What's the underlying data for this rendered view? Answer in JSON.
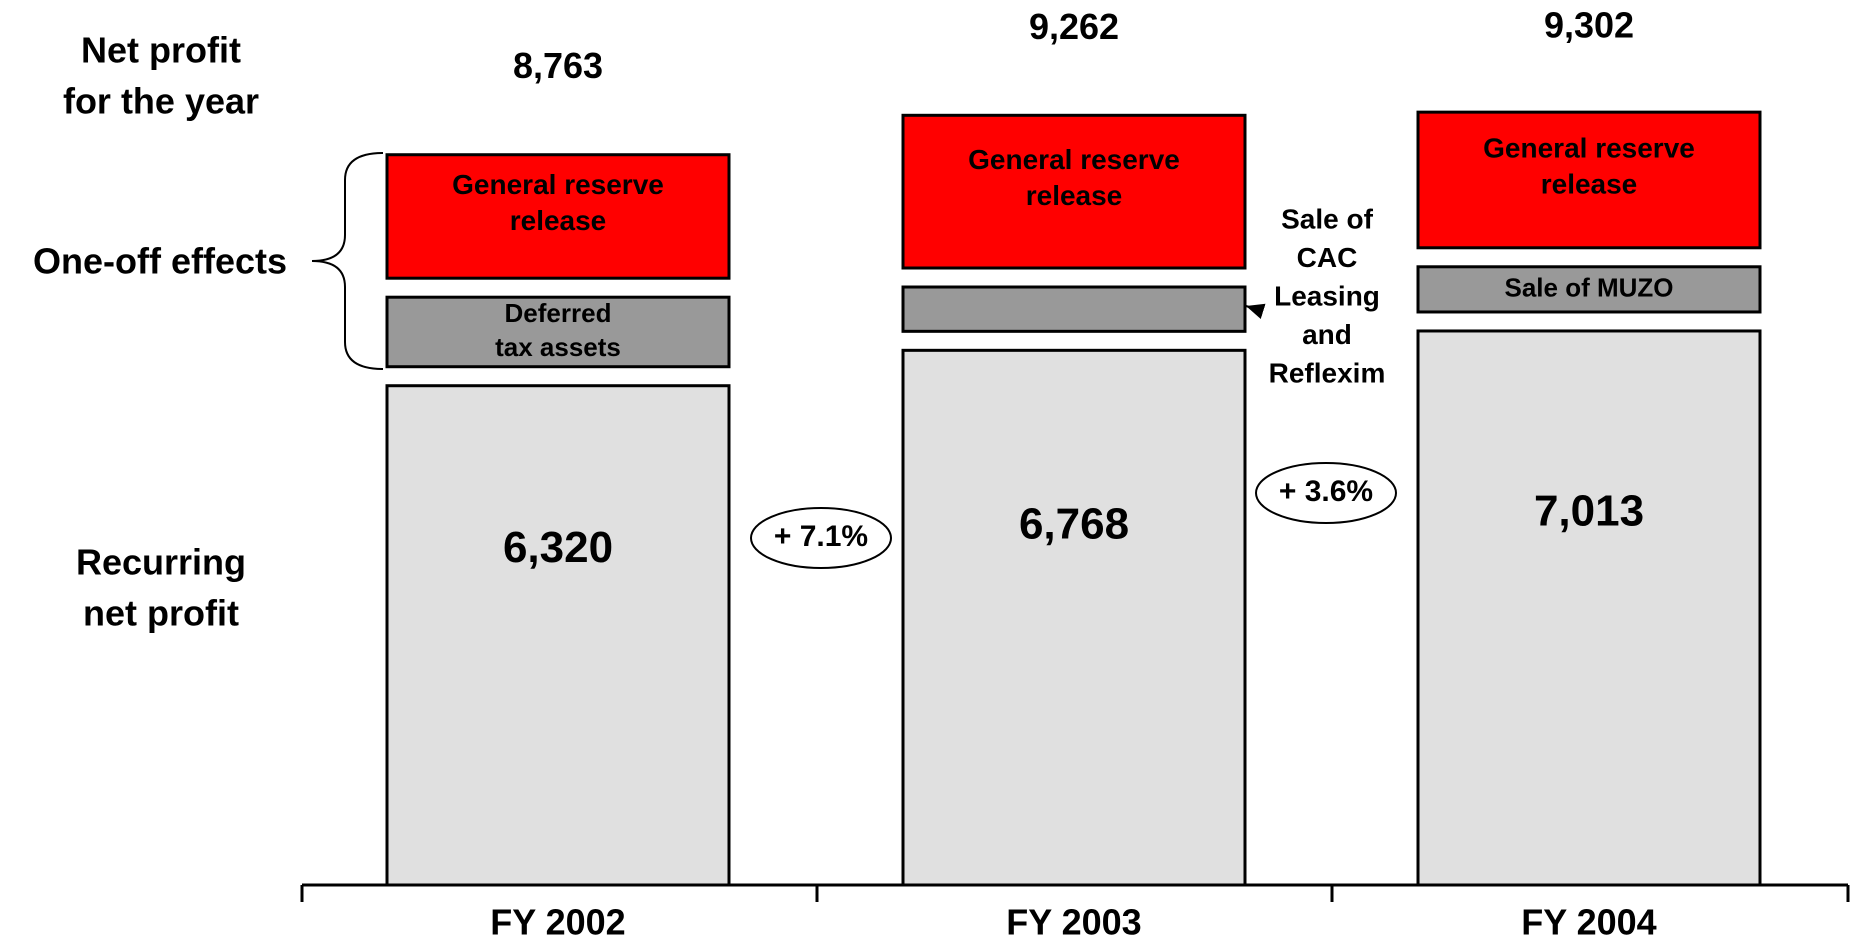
{
  "chart_data": {
    "type": "stacked_bar",
    "categories": [
      "FY 2002",
      "FY 2003",
      "FY 2004"
    ],
    "series": [
      {
        "color": "#e0e0e0",
        "values": [
          6320,
          6768,
          7013
        ],
        "value_labels": [
          "6,320",
          "6,768",
          "7,013"
        ]
      },
      {
        "color": "#999999",
        "values": [
          880,
          561,
          572
        ],
        "labels": [
          [
            "Deferred",
            "tax assets"
          ],
          null,
          [
            "Sale of MUZO"
          ]
        ]
      },
      {
        "color": "#ff0000",
        "values": [
          1563,
          1933,
          1717
        ],
        "labels": [
          [
            "General  reserve",
            "release"
          ],
          [
            "General reserve",
            "release"
          ],
          [
            "General reserve",
            "release"
          ]
        ]
      }
    ],
    "totals": {
      "values": [
        8763,
        9262,
        9302
      ],
      "value_labels": [
        "8,763",
        "9,262",
        "9,302"
      ]
    },
    "row_labels": [
      [
        "Net profit",
        "for the year"
      ],
      [
        "One-off effects"
      ],
      [
        "Recurring",
        "net profit"
      ]
    ],
    "growth": {
      "values": [
        7.1,
        3.6
      ],
      "value_labels": [
        "+ 7.1%",
        "+ 3.6%"
      ]
    },
    "annotation": [
      "Sale of",
      "CAC",
      "Leasing",
      "and",
      "Reflexim"
    ]
  }
}
